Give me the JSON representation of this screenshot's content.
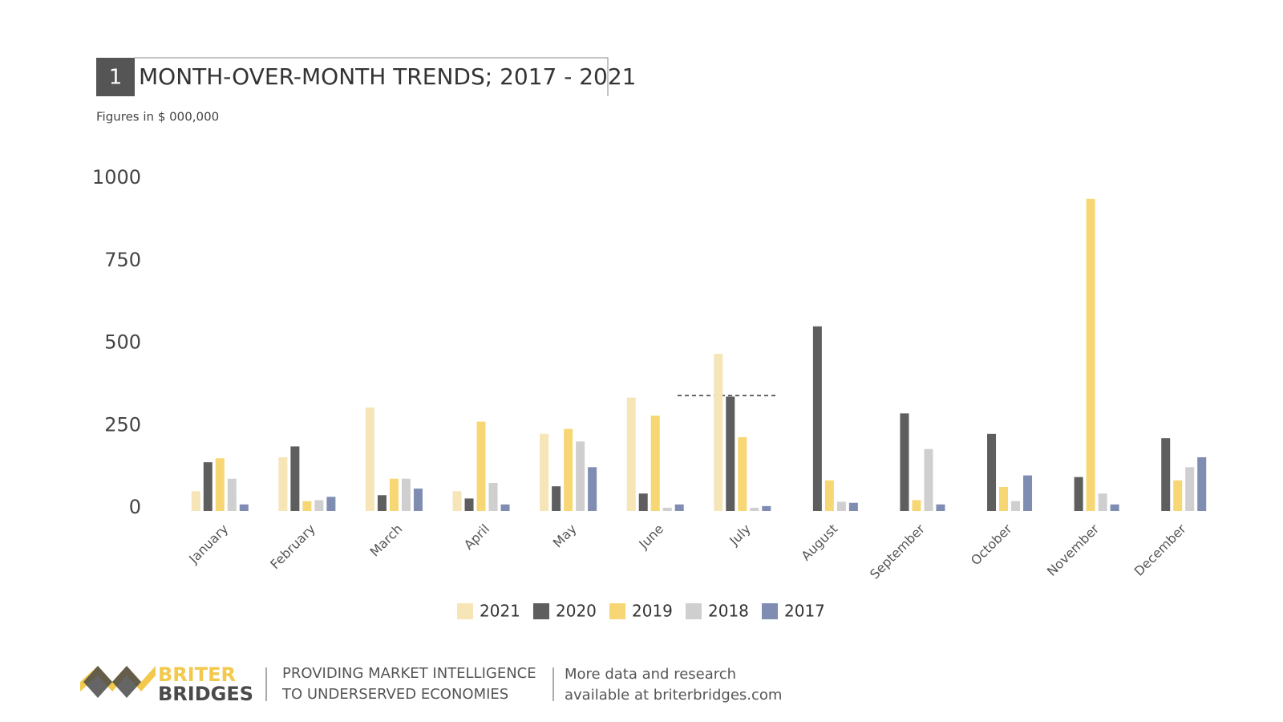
{
  "header": {
    "number": "1",
    "title": "MONTH-OVER-MONTH TRENDS; 2017 - 2021",
    "subtitle": "Figures in $ 000,000"
  },
  "chart_data": {
    "type": "bar",
    "categories": [
      "January",
      "February",
      "March",
      "April",
      "May",
      "June",
      "July",
      "August",
      "September",
      "October",
      "November",
      "December"
    ],
    "series": [
      {
        "name": "2021",
        "color": "#f6e5b6",
        "values": [
          60,
          163,
          314,
          60,
          234,
          344,
          477,
          null,
          null,
          null,
          null,
          null
        ]
      },
      {
        "name": "2020",
        "color": "#5e5e5e",
        "values": [
          148,
          196,
          48,
          38,
          75,
          53,
          347,
          560,
          296,
          234,
          103,
          221
        ]
      },
      {
        "name": "2019",
        "color": "#f7d774",
        "values": [
          160,
          30,
          98,
          271,
          249,
          289,
          224,
          93,
          33,
          73,
          947,
          93
        ]
      },
      {
        "name": "2018",
        "color": "#cfcfcf",
        "values": [
          98,
          33,
          98,
          85,
          211,
          10,
          10,
          28,
          188,
          30,
          53,
          133
        ]
      },
      {
        "name": "2017",
        "color": "#7f8db3",
        "values": [
          20,
          43,
          68,
          20,
          133,
          20,
          15,
          25,
          20,
          108,
          20,
          163
        ]
      }
    ],
    "ylim": [
      0,
      1000
    ],
    "yticks": [
      0,
      250,
      500,
      750,
      1000
    ],
    "grid": false,
    "legend": "bottom"
  },
  "footer": {
    "brand_top": "BRITER",
    "brand_bottom": "BRIDGES",
    "tagline": [
      "PROVIDING MARKET INTELLIGENCE",
      "TO UNDERSERVED ECONOMIES"
    ],
    "more": [
      "More data and research",
      "available at briterbridges.com"
    ]
  }
}
